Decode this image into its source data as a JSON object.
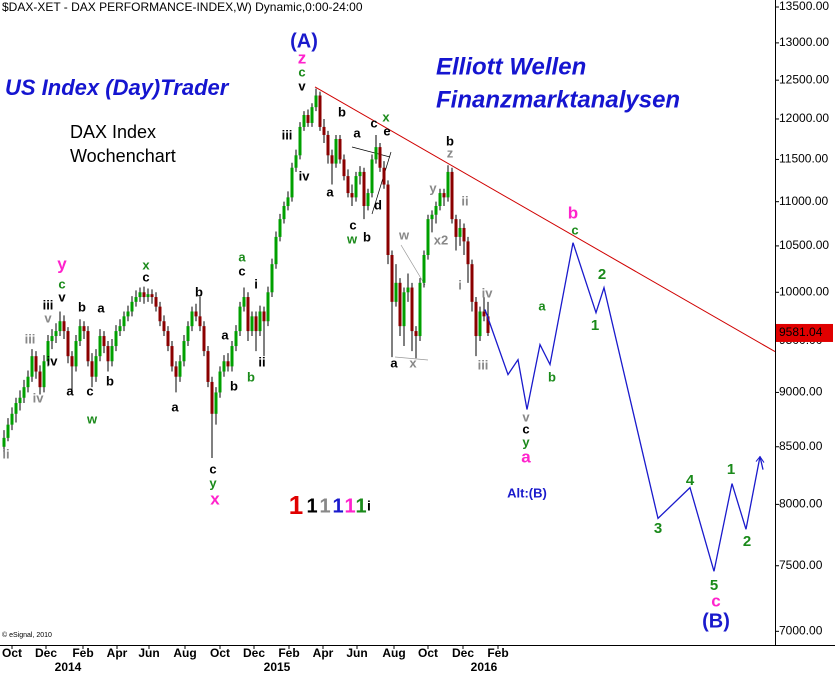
{
  "header": "$DAX-XET - DAX PERFORMANCE-INDEX,W) Dynamic,0:00-24:00",
  "watermark": "© eSignal, 2010",
  "branding": {
    "left": "US Index (Day)Trader",
    "right": [
      "Elliott Wellen",
      "Finanzmarktanalysen"
    ],
    "color": "#1515d0"
  },
  "chart_data": {
    "type": "candlestick",
    "title": [
      "DAX Index",
      "Wochenchart"
    ],
    "up_color": "#00a000",
    "down_color": "#8b0000",
    "wick_color": "#000000",
    "candles": [
      [
        8500,
        8650,
        8420,
        8580
      ],
      [
        8580,
        8760,
        8550,
        8700
      ],
      [
        8700,
        8860,
        8650,
        8800
      ],
      [
        8800,
        8950,
        8720,
        8900
      ],
      [
        8900,
        9020,
        8830,
        8950
      ],
      [
        8950,
        9120,
        8900,
        9050
      ],
      [
        9050,
        9210,
        9000,
        9150
      ],
      [
        9150,
        9420,
        9100,
        9350
      ],
      [
        9350,
        9400,
        9130,
        9200
      ],
      [
        9200,
        9260,
        8980,
        9050
      ],
      [
        9050,
        9360,
        9000,
        9300
      ],
      [
        9300,
        9560,
        9250,
        9500
      ],
      [
        9500,
        9620,
        9420,
        9550
      ],
      [
        9550,
        9680,
        9480,
        9600
      ],
      [
        9600,
        9800,
        9550,
        9700
      ],
      [
        9700,
        9760,
        9520,
        9600
      ],
      [
        9600,
        9640,
        9280,
        9350
      ],
      [
        9350,
        9400,
        9010,
        9250
      ],
      [
        9250,
        9560,
        9200,
        9500
      ],
      [
        9500,
        9720,
        9450,
        9650
      ],
      [
        9650,
        9700,
        9520,
        9600
      ],
      [
        9600,
        9650,
        9250,
        9300
      ],
      [
        9300,
        9380,
        9050,
        9150
      ],
      [
        9150,
        9420,
        9100,
        9350
      ],
      [
        9350,
        9620,
        9300,
        9550
      ],
      [
        9550,
        9600,
        9380,
        9450
      ],
      [
        9450,
        9500,
        9200,
        9300
      ],
      [
        9300,
        9520,
        9250,
        9450
      ],
      [
        9450,
        9660,
        9400,
        9600
      ],
      [
        9600,
        9720,
        9550,
        9650
      ],
      [
        9650,
        9800,
        9600,
        9750
      ],
      [
        9750,
        9860,
        9700,
        9800
      ],
      [
        9800,
        9960,
        9750,
        9900
      ],
      [
        9900,
        10020,
        9850,
        9950
      ],
      [
        9950,
        10050,
        9900,
        10000
      ],
      [
        10000,
        10060,
        9880,
        9950
      ],
      [
        9950,
        10040,
        9900,
        9980
      ],
      [
        9980,
        10030,
        9880,
        9950
      ],
      [
        9950,
        10000,
        9800,
        9850
      ],
      [
        9850,
        9900,
        9650,
        9700
      ],
      [
        9700,
        9760,
        9550,
        9600
      ],
      [
        9600,
        9650,
        9400,
        9450
      ],
      [
        9450,
        9500,
        9200,
        9250
      ],
      [
        9250,
        9300,
        9000,
        9150
      ],
      [
        9150,
        9360,
        9100,
        9300
      ],
      [
        9300,
        9560,
        9250,
        9500
      ],
      [
        9500,
        9700,
        9450,
        9650
      ],
      [
        9650,
        9850,
        9600,
        9800
      ],
      [
        9800,
        9880,
        9700,
        9750
      ],
      [
        9750,
        9950,
        9600,
        9650
      ],
      [
        9650,
        9700,
        9350,
        9400
      ],
      [
        9400,
        9450,
        9050,
        9100
      ],
      [
        9100,
        9150,
        8400,
        8800
      ],
      [
        8800,
        9050,
        8700,
        9000
      ],
      [
        9000,
        9250,
        8950,
        9200
      ],
      [
        9200,
        9360,
        9150,
        9300
      ],
      [
        9300,
        9380,
        9200,
        9250
      ],
      [
        9250,
        9500,
        9200,
        9450
      ],
      [
        9450,
        9660,
        9400,
        9600
      ],
      [
        9600,
        9900,
        9550,
        9850
      ],
      [
        9850,
        10050,
        9800,
        9950
      ],
      [
        9950,
        10000,
        9500,
        9600
      ],
      [
        9600,
        9800,
        9550,
        9750
      ],
      [
        9750,
        9800,
        9400,
        9600
      ],
      [
        9600,
        9860,
        9550,
        9800
      ],
      [
        9800,
        9850,
        9350,
        9700
      ],
      [
        9700,
        10060,
        9650,
        10000
      ],
      [
        10000,
        10360,
        9950,
        10300
      ],
      [
        10300,
        10660,
        10250,
        10600
      ],
      [
        10600,
        10860,
        10550,
        10800
      ],
      [
        10800,
        11000,
        10750,
        10950
      ],
      [
        10950,
        11120,
        10900,
        11050
      ],
      [
        11050,
        11460,
        11000,
        11400
      ],
      [
        11400,
        11620,
        11350,
        11550
      ],
      [
        11550,
        11960,
        11500,
        11900
      ],
      [
        11900,
        12100,
        11850,
        12050
      ],
      [
        12050,
        12120,
        11900,
        11950
      ],
      [
        11950,
        12200,
        11900,
        12150
      ],
      [
        12150,
        12390,
        12100,
        12300
      ],
      [
        12300,
        12350,
        11850,
        11900
      ],
      [
        11900,
        12000,
        11700,
        11800
      ],
      [
        11800,
        11850,
        11450,
        11550
      ],
      [
        11550,
        11620,
        11200,
        11450
      ],
      [
        11450,
        11800,
        11400,
        11750
      ],
      [
        11750,
        11800,
        11450,
        11500
      ],
      [
        11500,
        11560,
        11250,
        11300
      ],
      [
        11300,
        11380,
        11050,
        11100
      ],
      [
        11100,
        11200,
        10950,
        11050
      ],
      [
        11050,
        11350,
        11000,
        11300
      ],
      [
        11300,
        11420,
        11200,
        11350
      ],
      [
        11350,
        11400,
        10800,
        10950
      ],
      [
        10950,
        11150,
        10900,
        11100
      ],
      [
        11100,
        11560,
        11050,
        11500
      ],
      [
        11500,
        11800,
        11450,
        11650
      ],
      [
        11650,
        11700,
        11350,
        11400
      ],
      [
        11400,
        11480,
        11150,
        11200
      ],
      [
        11200,
        11250,
        10300,
        10400
      ],
      [
        10400,
        10450,
        9340,
        9900
      ],
      [
        9900,
        10300,
        9850,
        10100
      ],
      [
        10100,
        10150,
        9550,
        9650
      ],
      [
        9650,
        10050,
        9450,
        10000
      ],
      [
        10000,
        10200,
        9900,
        10050
      ],
      [
        10050,
        10100,
        9400,
        9600
      ],
      [
        9600,
        9650,
        9330,
        9550
      ],
      [
        9550,
        10150,
        9500,
        10100
      ],
      [
        10100,
        10450,
        10050,
        10400
      ],
      [
        10400,
        10850,
        10350,
        10800
      ],
      [
        10800,
        10900,
        10650,
        10850
      ],
      [
        10850,
        11000,
        10750,
        10950
      ],
      [
        10950,
        11150,
        10900,
        11100
      ],
      [
        11100,
        11150,
        10950,
        11050
      ],
      [
        11050,
        11430,
        11000,
        11350
      ],
      [
        11350,
        11400,
        10750,
        10800
      ],
      [
        10800,
        10850,
        10450,
        10600
      ],
      [
        10600,
        10800,
        10500,
        10700
      ],
      [
        10700,
        10750,
        10400,
        10550
      ],
      [
        10550,
        10600,
        10100,
        10300
      ],
      [
        10300,
        10350,
        9800,
        9900
      ],
      [
        9900,
        9950,
        9350,
        9550
      ],
      [
        9550,
        9850,
        9500,
        9800
      ],
      [
        9800,
        9950,
        9700,
        9750
      ],
      [
        9750,
        9900,
        9550,
        9581.04
      ]
    ],
    "xlim": [
      -0.5,
      193.25
    ],
    "xticks": [
      {
        "value": 2.5,
        "label": "Oct"
      },
      {
        "value": 11,
        "label": "Dec"
      },
      {
        "value": 20.25,
        "label": "Feb"
      },
      {
        "value": 28.75,
        "label": "Apr"
      },
      {
        "value": 36.75,
        "label": "Jun"
      },
      {
        "value": 45.75,
        "label": "Aug"
      },
      {
        "value": 54.5,
        "label": "Oct"
      },
      {
        "value": 63,
        "label": "Dec"
      },
      {
        "value": 71.75,
        "label": "Feb"
      },
      {
        "value": 80.25,
        "label": "Apr"
      },
      {
        "value": 88.75,
        "label": "Jun"
      },
      {
        "value": 98,
        "label": "Aug"
      },
      {
        "value": 106.5,
        "label": "Oct"
      },
      {
        "value": 115.25,
        "label": "Dec"
      },
      {
        "value": 124,
        "label": "Feb"
      }
    ],
    "year_ticks": [
      {
        "value": 16.5,
        "label": "2014"
      },
      {
        "value": 68.75,
        "label": "2015"
      },
      {
        "value": 120.5,
        "label": "2016"
      }
    ],
    "ylim": [
      6900,
      13600
    ],
    "log_scale": true,
    "grid": false,
    "yticks": [
      {
        "value": 7000,
        "label": "7000.00"
      },
      {
        "value": 7500,
        "label": "7500.00"
      },
      {
        "value": 8000,
        "label": "8000.00"
      },
      {
        "value": 8500,
        "label": "8500.00"
      },
      {
        "value": 9000,
        "label": "9000.00"
      },
      {
        "value": 9500,
        "label": "9500.00"
      },
      {
        "value": 10000,
        "label": "10000.00"
      },
      {
        "value": 10500,
        "label": "10500.00"
      },
      {
        "value": 11000,
        "label": "11000.00"
      },
      {
        "value": 11500,
        "label": "11500.00"
      },
      {
        "value": 12000,
        "label": "12000.00"
      },
      {
        "value": 12500,
        "label": "12500.00"
      },
      {
        "value": 13000,
        "label": "13000.00"
      },
      {
        "value": 13500,
        "label": "13500.00"
      }
    ],
    "last_price": 9581.04,
    "last_price_color": "#e00000",
    "projection": {
      "color": "#1a1acc",
      "x": [
        120.75,
        126.5,
        129,
        131.25,
        134.5,
        137,
        142.75,
        148.5,
        150.5,
        164,
        172,
        178,
        182.5,
        186,
        189.5,
        190.25
      ],
      "values": [
        9820,
        9170,
        9315,
        8840,
        9464,
        9268,
        10535,
        9788,
        10048,
        7883,
        8143,
        7456,
        8177,
        7793,
        8413,
        8298
      ]
    },
    "trendline": {
      "color": "#d00000",
      "x": [
        78.25,
        193.25
      ],
      "values": [
        12412,
        9395
      ]
    },
    "annotations": [
      {
        "text": "ii",
        "color": "#888888"
      },
      {
        "text": "iii",
        "color": "#888888"
      },
      {
        "text": "iv",
        "color": "#888888"
      },
      {
        "text": "v",
        "color": "#888888"
      },
      {
        "text": "iii",
        "color": "#000000"
      },
      {
        "text": "iv",
        "color": "#000000"
      },
      {
        "text": "y",
        "color": "#ff22cc"
      },
      {
        "text": "c",
        "color": "#1a8a1a"
      },
      {
        "text": "v",
        "color": "#000000"
      },
      {
        "text": "a",
        "color": "#000000"
      },
      {
        "text": "b",
        "color": "#000000"
      },
      {
        "text": "a",
        "color": "#000000"
      },
      {
        "text": "c",
        "color": "#000000"
      },
      {
        "text": "w",
        "color": "#1a8a1a"
      },
      {
        "text": "b",
        "color": "#000000"
      },
      {
        "text": "x",
        "color": "#1a8a1a"
      },
      {
        "text": "c",
        "color": "#000000"
      },
      {
        "text": "a",
        "color": "#000000"
      },
      {
        "text": "b",
        "color": "#000000"
      },
      {
        "text": "a",
        "color": "#000000"
      },
      {
        "text": "b",
        "color": "#000000"
      },
      {
        "text": "i",
        "color": "#000000"
      },
      {
        "text": "ii",
        "color": "#000000"
      },
      {
        "text": "a",
        "color": "#1a8a1a"
      },
      {
        "text": "c",
        "color": "#000000"
      },
      {
        "text": "b",
        "color": "#1a8a1a"
      },
      {
        "text": "c",
        "color": "#000000"
      },
      {
        "text": "y",
        "color": "#1a8a1a"
      },
      {
        "text": "x",
        "color": "#ff22cc"
      },
      {
        "text": "iii",
        "color": "#000000"
      },
      {
        "text": "iv",
        "color": "#000000"
      },
      {
        "text": "v",
        "color": "#000000"
      },
      {
        "text": "c",
        "color": "#1a8a1a"
      },
      {
        "text": "z",
        "color": "#ff22cc"
      },
      {
        "text": "(A)",
        "color": "#1a1acc"
      },
      {
        "text": "a",
        "color": "#000000"
      },
      {
        "text": "b",
        "color": "#000000"
      },
      {
        "text": "c",
        "color": "#000000"
      },
      {
        "text": "w",
        "color": "#1a8a1a"
      },
      {
        "text": "b",
        "color": "#000000"
      },
      {
        "text": "a",
        "color": "#000000"
      },
      {
        "text": "c",
        "color": "#000000"
      },
      {
        "text": "x",
        "color": "#1a8a1a"
      },
      {
        "text": "e",
        "color": "#000000"
      },
      {
        "text": "d",
        "color": "#000000"
      },
      {
        "text": "w",
        "color": "#888888"
      },
      {
        "text": "a",
        "color": "#000000"
      },
      {
        "text": "x",
        "color": "#888888"
      },
      {
        "text": "y",
        "color": "#888888"
      },
      {
        "text": "x2",
        "color": "#888888"
      },
      {
        "text": "b",
        "color": "#000000"
      },
      {
        "text": "z",
        "color": "#888888"
      },
      {
        "text": "ii",
        "color": "#888888"
      },
      {
        "text": "i",
        "color": "#888888"
      },
      {
        "text": "iv",
        "color": "#888888"
      },
      {
        "text": "iii",
        "color": "#888888"
      },
      {
        "text": "v",
        "color": "#888888"
      },
      {
        "text": "c",
        "color": "#000000"
      },
      {
        "text": "y",
        "color": "#1a8a1a"
      },
      {
        "text": "a",
        "color": "#ff22cc"
      },
      {
        "text": "a",
        "color": "#1a8a1a"
      },
      {
        "text": "b",
        "color": "#1a8a1a"
      },
      {
        "text": "b",
        "color": "#ff22cc"
      },
      {
        "text": "c",
        "color": "#1a8a1a"
      },
      {
        "text": "2",
        "color": "#1a8a1a"
      },
      {
        "text": "1",
        "color": "#1a8a1a"
      },
      {
        "text": "3",
        "color": "#1a8a1a"
      },
      {
        "text": "4",
        "color": "#1a8a1a"
      },
      {
        "text": "5",
        "color": "#1a8a1a"
      },
      {
        "text": "c",
        "color": "#ff22cc"
      },
      {
        "text": "(B)",
        "color": "#1a1acc"
      },
      {
        "text": "1",
        "color": "#1a8a1a"
      },
      {
        "text": "2",
        "color": "#1a8a1a"
      },
      {
        "text": "Alt:(B)",
        "color": "#1a1acc"
      }
    ],
    "degree_legend": [
      {
        "text": "1",
        "color": "#e00000"
      },
      {
        "text": "1",
        "color": "#000000"
      },
      {
        "text": "1",
        "color": "#888888"
      },
      {
        "text": "1",
        "color": "#1a1acc"
      },
      {
        "text": "1",
        "color": "#ff22cc"
      },
      {
        "text": "1",
        "color": "#1a8a1a"
      },
      {
        "text": "i",
        "color": "#000000"
      }
    ]
  }
}
